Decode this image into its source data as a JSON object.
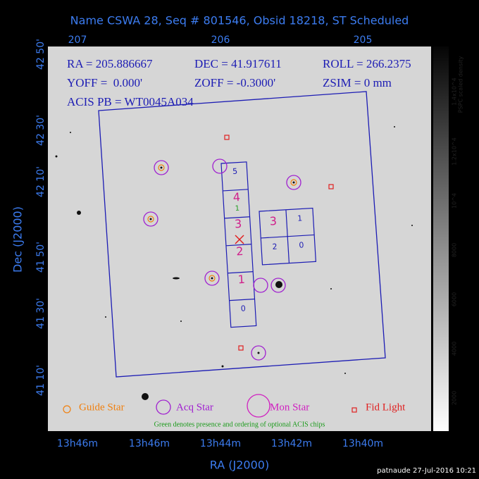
{
  "header": {
    "title": "Name CSWA 28, Seq # 801546, Obsid 18218, ST Scheduled"
  },
  "top_axis": {
    "labels": [
      "207",
      "206",
      "205"
    ]
  },
  "left_axis": {
    "title": "Dec (J2000)",
    "labels": [
      "42 50'",
      "42 30'",
      "42 10'",
      "41 50'",
      "41 30'",
      "41 10'"
    ]
  },
  "bottom_axis": {
    "title": "RA (J2000)",
    "labels": [
      "13h46m",
      "13h46m",
      "13h44m",
      "13h42m",
      "13h40m"
    ]
  },
  "info": {
    "rows": [
      [
        "RA = 205.886667",
        "DEC = 41.917611",
        "ROLL = 266.2375"
      ],
      [
        "YOFF =  0.000'",
        "ZOFF = -0.3000'",
        "ZSIM = 0 mm"
      ],
      [
        "ACIS PB = WT0045A034"
      ]
    ]
  },
  "chips": {
    "column": [
      "5",
      "4",
      "3",
      "2",
      "1",
      "0"
    ],
    "optional": "1",
    "square": [
      "3",
      "1",
      "2",
      "0"
    ]
  },
  "legend": {
    "items": [
      "Guide Star",
      "Acq Star",
      "Mon Star",
      "Fid Light"
    ],
    "note": "Green denotes presence and ordering of optional ACIS chips"
  },
  "colorbar": {
    "title": "PSPC scaled density",
    "labels": [
      "1.4x10^4",
      "1.2x10^4",
      "10^4",
      "8000",
      "6000",
      "4000",
      "2000"
    ]
  },
  "footer": "patnaude 27-Jul-2016 10:21"
}
